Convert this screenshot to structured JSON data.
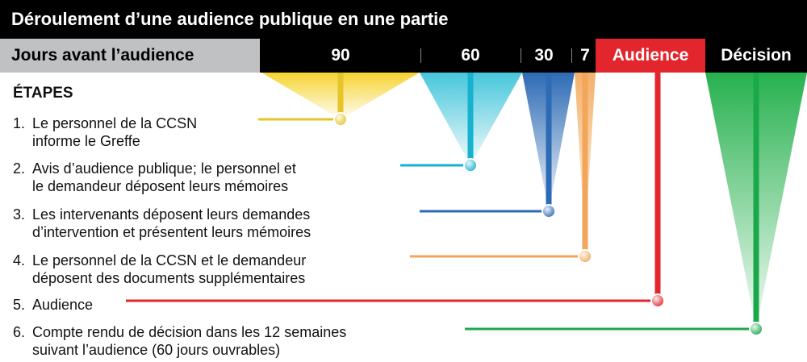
{
  "title": "Déroulement d’une audience publique en une partie",
  "timeline": {
    "label": "Jours avant l’audience",
    "ticks": [
      "90",
      "60",
      "30",
      "7"
    ],
    "audience": "Audience",
    "decision": "Décision"
  },
  "steps_heading": "ÉTAPES",
  "steps": [
    {
      "num": "1.",
      "line1": "Le personnel de la CCSN",
      "line2": "informe le Greffe"
    },
    {
      "num": "2.",
      "line1": "Avis d’audience publique; le personnel et",
      "line2": "le demandeur déposent leurs mémoires"
    },
    {
      "num": "3.",
      "line1": "Les intervenants déposent leurs demandes",
      "line2": "d’intervention et présentent leurs mémoires"
    },
    {
      "num": "4.",
      "line1": "Le personnel de la CCSN et le demandeur",
      "line2": "déposent des documents supplémentaires"
    },
    {
      "num": "5.",
      "line1": "Audience",
      "line2": ""
    },
    {
      "num": "6.",
      "line1": "Compte rendu de décision dans les 12 semaines",
      "line2": "suivant l’audience (60 jours ouvrables)"
    }
  ],
  "colors": {
    "step1": "#e6c42a",
    "step2": "#17b2cf",
    "step3": "#2d6bb5",
    "step4": "#f2a65a",
    "step5": "#e3262d",
    "step6": "#1aa94a"
  }
}
